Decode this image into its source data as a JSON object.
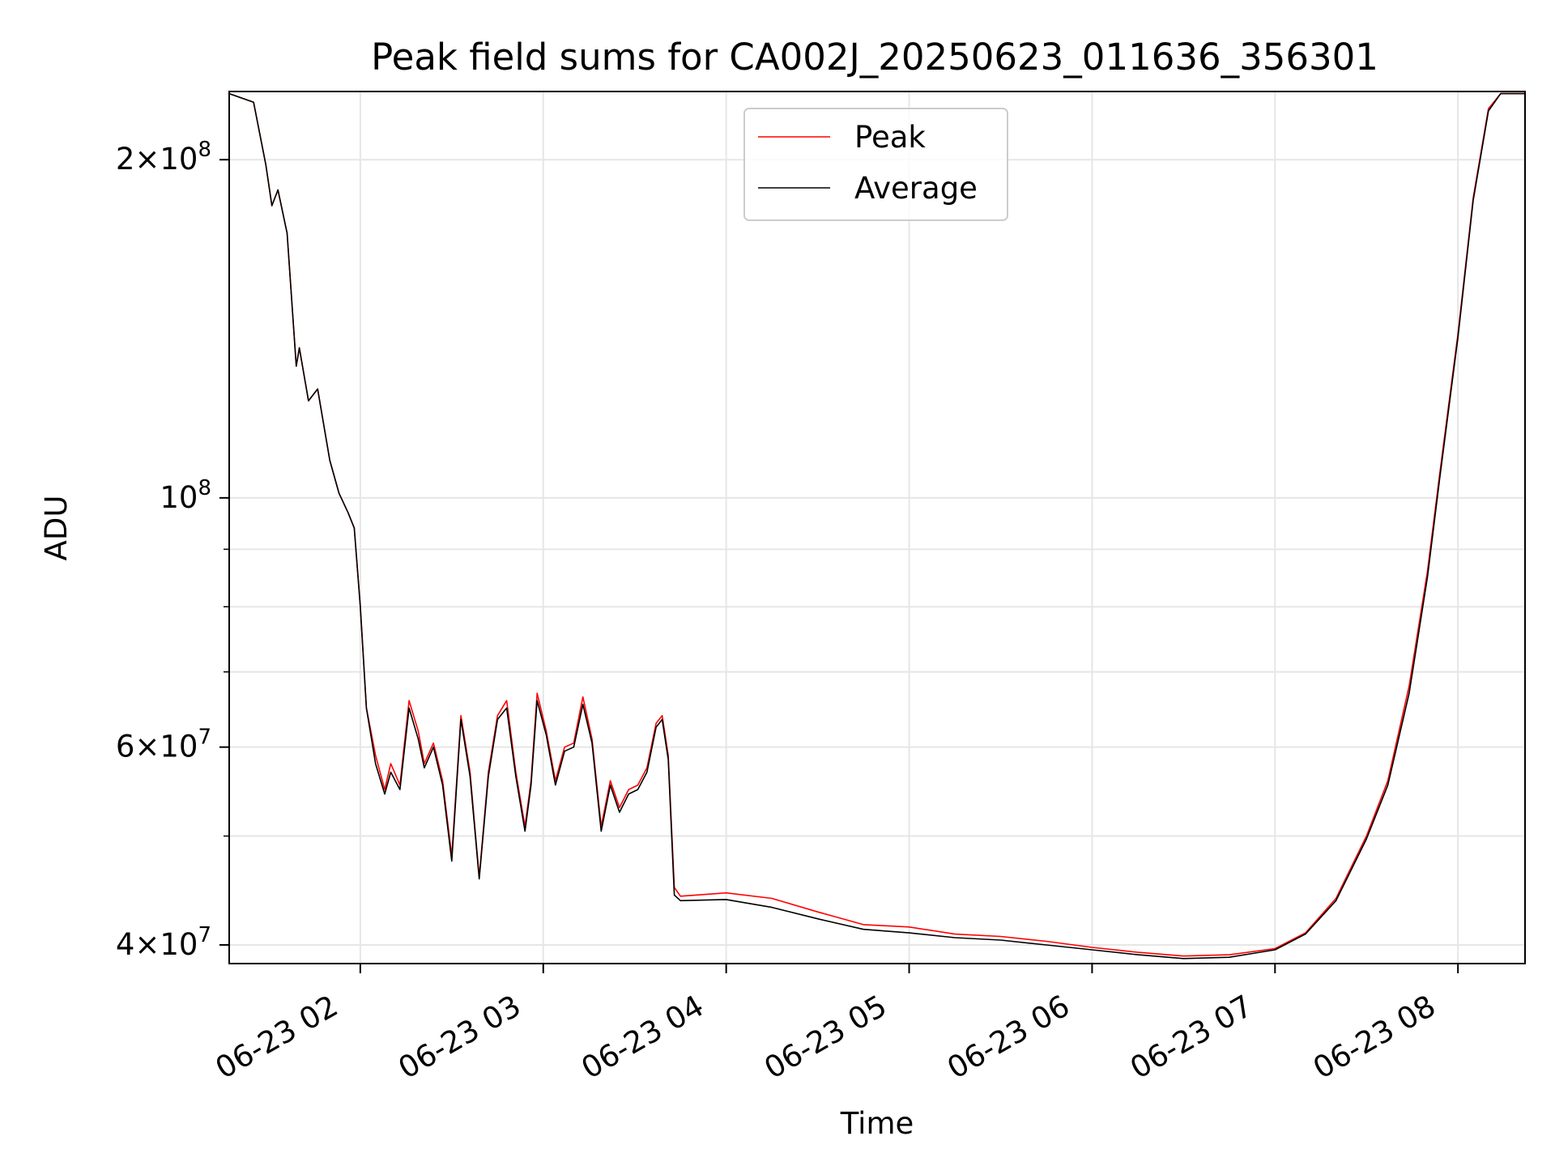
{
  "chart_data": {
    "type": "line",
    "title": "Peak field sums for CA002J_20250623_011636_356301",
    "xlabel": "Time",
    "ylabel": "ADU",
    "yscale": "log",
    "grid": true,
    "legend_position": "top-center",
    "xlim": [
      "2025-06-23 01:17",
      "2025-06-23 08:22"
    ],
    "ylim": [
      38500000,
      230000000
    ],
    "x_ticks": [
      {
        "value": "2025-06-23 02:00",
        "label": "06-23 02"
      },
      {
        "value": "2025-06-23 03:00",
        "label": "06-23 03"
      },
      {
        "value": "2025-06-23 04:00",
        "label": "06-23 04"
      },
      {
        "value": "2025-06-23 05:00",
        "label": "06-23 05"
      },
      {
        "value": "2025-06-23 06:00",
        "label": "06-23 06"
      },
      {
        "value": "2025-06-23 07:00",
        "label": "06-23 07"
      },
      {
        "value": "2025-06-23 08:00",
        "label": "06-23 08"
      }
    ],
    "y_major_ticks": [
      {
        "value": 40000000,
        "mantissa": "4",
        "exponent": "7"
      },
      {
        "value": 60000000,
        "mantissa": "6",
        "exponent": "7"
      },
      {
        "value": 100000000,
        "mantissa": "",
        "exponent": "8"
      },
      {
        "value": 200000000,
        "mantissa": "2",
        "exponent": "8"
      }
    ],
    "y_minor_ticks": [
      50000000,
      70000000,
      80000000,
      90000000
    ],
    "tick_prefix": {
      "times": "×",
      "base": "10"
    },
    "series": [
      {
        "name": "Peak",
        "color": "#ff0000",
        "points": [
          [
            "2025-06-23 01:17",
            229000000
          ],
          [
            "2025-06-23 01:25",
            225000000
          ],
          [
            "2025-06-23 01:29",
            198000000
          ],
          [
            "2025-06-23 01:31",
            182000000
          ],
          [
            "2025-06-23 01:33",
            188000000
          ],
          [
            "2025-06-23 01:36",
            172000000
          ],
          [
            "2025-06-23 01:39",
            131000000
          ],
          [
            "2025-06-23 01:40",
            136000000
          ],
          [
            "2025-06-23 01:43",
            122000000
          ],
          [
            "2025-06-23 01:46",
            125000000
          ],
          [
            "2025-06-23 01:50",
            108000000
          ],
          [
            "2025-06-23 01:53",
            101000000
          ],
          [
            "2025-06-23 01:56",
            97000000
          ],
          [
            "2025-06-23 01:58",
            94000000
          ],
          [
            "2025-06-23 02:00",
            80000000
          ],
          [
            "2025-06-23 02:02",
            65000000
          ],
          [
            "2025-06-23 02:05",
            59000000
          ],
          [
            "2025-06-23 02:08",
            55000000
          ],
          [
            "2025-06-23 02:10",
            58000000
          ],
          [
            "2025-06-23 02:13",
            55500000
          ],
          [
            "2025-06-23 02:16",
            66000000
          ],
          [
            "2025-06-23 02:19",
            62000000
          ],
          [
            "2025-06-23 02:21",
            58000000
          ],
          [
            "2025-06-23 02:24",
            60500000
          ],
          [
            "2025-06-23 02:27",
            56000000
          ],
          [
            "2025-06-23 02:30",
            48000000
          ],
          [
            "2025-06-23 02:33",
            64000000
          ],
          [
            "2025-06-23 02:36",
            57000000
          ],
          [
            "2025-06-23 02:39",
            46000000
          ],
          [
            "2025-06-23 02:42",
            57000000
          ],
          [
            "2025-06-23 02:45",
            64000000
          ],
          [
            "2025-06-23 02:48",
            66000000
          ],
          [
            "2025-06-23 02:51",
            57000000
          ],
          [
            "2025-06-23 02:54",
            51000000
          ],
          [
            "2025-06-23 02:56",
            56000000
          ],
          [
            "2025-06-23 02:58",
            67000000
          ],
          [
            "2025-06-23 03:01",
            62000000
          ],
          [
            "2025-06-23 03:04",
            56000000
          ],
          [
            "2025-06-23 03:07",
            60000000
          ],
          [
            "2025-06-23 03:10",
            60500000
          ],
          [
            "2025-06-23 03:13",
            66500000
          ],
          [
            "2025-06-23 03:16",
            61000000
          ],
          [
            "2025-06-23 03:19",
            51000000
          ],
          [
            "2025-06-23 03:22",
            56000000
          ],
          [
            "2025-06-23 03:25",
            53000000
          ],
          [
            "2025-06-23 03:28",
            55000000
          ],
          [
            "2025-06-23 03:31",
            55500000
          ],
          [
            "2025-06-23 03:34",
            57500000
          ],
          [
            "2025-06-23 03:37",
            63000000
          ],
          [
            "2025-06-23 03:39",
            64000000
          ],
          [
            "2025-06-23 03:41",
            59000000
          ],
          [
            "2025-06-23 03:43",
            45000000
          ],
          [
            "2025-06-23 03:45",
            44200000
          ],
          [
            "2025-06-23 04:00",
            44500000
          ],
          [
            "2025-06-23 04:15",
            44000000
          ],
          [
            "2025-06-23 04:30",
            42800000
          ],
          [
            "2025-06-23 04:45",
            41700000
          ],
          [
            "2025-06-23 05:00",
            41500000
          ],
          [
            "2025-06-23 05:15",
            40900000
          ],
          [
            "2025-06-23 05:30",
            40700000
          ],
          [
            "2025-06-23 05:45",
            40300000
          ],
          [
            "2025-06-23 06:00",
            39800000
          ],
          [
            "2025-06-23 06:15",
            39400000
          ],
          [
            "2025-06-23 06:30",
            39100000
          ],
          [
            "2025-06-23 06:45",
            39200000
          ],
          [
            "2025-06-23 07:00",
            39700000
          ],
          [
            "2025-06-23 07:10",
            41000000
          ],
          [
            "2025-06-23 07:20",
            44000000
          ],
          [
            "2025-06-23 07:30",
            50000000
          ],
          [
            "2025-06-23 07:37",
            56000000
          ],
          [
            "2025-06-23 07:44",
            68000000
          ],
          [
            "2025-06-23 07:50",
            86000000
          ],
          [
            "2025-06-23 07:54",
            105000000
          ],
          [
            "2025-06-23 08:00",
            140000000
          ],
          [
            "2025-06-23 08:05",
            185000000
          ],
          [
            "2025-06-23 08:10",
            222000000
          ],
          [
            "2025-06-23 08:14",
            229000000
          ],
          [
            "2025-06-23 08:22",
            229000000
          ]
        ]
      },
      {
        "name": "Average",
        "color": "#000000",
        "points": [
          [
            "2025-06-23 01:17",
            229000000
          ],
          [
            "2025-06-23 01:25",
            225000000
          ],
          [
            "2025-06-23 01:29",
            198000000
          ],
          [
            "2025-06-23 01:31",
            182000000
          ],
          [
            "2025-06-23 01:33",
            188000000
          ],
          [
            "2025-06-23 01:36",
            172000000
          ],
          [
            "2025-06-23 01:39",
            131000000
          ],
          [
            "2025-06-23 01:40",
            136000000
          ],
          [
            "2025-06-23 01:43",
            122000000
          ],
          [
            "2025-06-23 01:46",
            125000000
          ],
          [
            "2025-06-23 01:50",
            108000000
          ],
          [
            "2025-06-23 01:53",
            101000000
          ],
          [
            "2025-06-23 01:56",
            97000000
          ],
          [
            "2025-06-23 01:58",
            94000000
          ],
          [
            "2025-06-23 02:00",
            80000000
          ],
          [
            "2025-06-23 02:02",
            65000000
          ],
          [
            "2025-06-23 02:05",
            58000000
          ],
          [
            "2025-06-23 02:08",
            54500000
          ],
          [
            "2025-06-23 02:10",
            57000000
          ],
          [
            "2025-06-23 02:13",
            55000000
          ],
          [
            "2025-06-23 02:16",
            65000000
          ],
          [
            "2025-06-23 02:19",
            61000000
          ],
          [
            "2025-06-23 02:21",
            57500000
          ],
          [
            "2025-06-23 02:24",
            60000000
          ],
          [
            "2025-06-23 02:27",
            55500000
          ],
          [
            "2025-06-23 02:30",
            47500000
          ],
          [
            "2025-06-23 02:33",
            63500000
          ],
          [
            "2025-06-23 02:36",
            56500000
          ],
          [
            "2025-06-23 02:39",
            45800000
          ],
          [
            "2025-06-23 02:42",
            56500000
          ],
          [
            "2025-06-23 02:45",
            63500000
          ],
          [
            "2025-06-23 02:48",
            65000000
          ],
          [
            "2025-06-23 02:51",
            56500000
          ],
          [
            "2025-06-23 02:54",
            50500000
          ],
          [
            "2025-06-23 02:56",
            55500000
          ],
          [
            "2025-06-23 02:58",
            66000000
          ],
          [
            "2025-06-23 03:01",
            61500000
          ],
          [
            "2025-06-23 03:04",
            55500000
          ],
          [
            "2025-06-23 03:07",
            59500000
          ],
          [
            "2025-06-23 03:10",
            60000000
          ],
          [
            "2025-06-23 03:13",
            65500000
          ],
          [
            "2025-06-23 03:16",
            60500000
          ],
          [
            "2025-06-23 03:19",
            50500000
          ],
          [
            "2025-06-23 03:22",
            55500000
          ],
          [
            "2025-06-23 03:25",
            52500000
          ],
          [
            "2025-06-23 03:28",
            54500000
          ],
          [
            "2025-06-23 03:31",
            55000000
          ],
          [
            "2025-06-23 03:34",
            57000000
          ],
          [
            "2025-06-23 03:37",
            62500000
          ],
          [
            "2025-06-23 03:39",
            63500000
          ],
          [
            "2025-06-23 03:41",
            58500000
          ],
          [
            "2025-06-23 03:43",
            44300000
          ],
          [
            "2025-06-23 03:45",
            43800000
          ],
          [
            "2025-06-23 04:00",
            43900000
          ],
          [
            "2025-06-23 04:15",
            43200000
          ],
          [
            "2025-06-23 04:30",
            42200000
          ],
          [
            "2025-06-23 04:45",
            41300000
          ],
          [
            "2025-06-23 05:00",
            41000000
          ],
          [
            "2025-06-23 05:15",
            40600000
          ],
          [
            "2025-06-23 05:30",
            40400000
          ],
          [
            "2025-06-23 05:45",
            40000000
          ],
          [
            "2025-06-23 06:00",
            39600000
          ],
          [
            "2025-06-23 06:15",
            39200000
          ],
          [
            "2025-06-23 06:30",
            38900000
          ],
          [
            "2025-06-23 06:45",
            39000000
          ],
          [
            "2025-06-23 07:00",
            39600000
          ],
          [
            "2025-06-23 07:10",
            40900000
          ],
          [
            "2025-06-23 07:20",
            43800000
          ],
          [
            "2025-06-23 07:30",
            49700000
          ],
          [
            "2025-06-23 07:37",
            55500000
          ],
          [
            "2025-06-23 07:44",
            67000000
          ],
          [
            "2025-06-23 07:50",
            85000000
          ],
          [
            "2025-06-23 07:54",
            104000000
          ],
          [
            "2025-06-23 08:00",
            139000000
          ],
          [
            "2025-06-23 08:05",
            184000000
          ],
          [
            "2025-06-23 08:10",
            221000000
          ],
          [
            "2025-06-23 08:14",
            229000000
          ],
          [
            "2025-06-23 08:22",
            229000000
          ]
        ]
      }
    ]
  }
}
